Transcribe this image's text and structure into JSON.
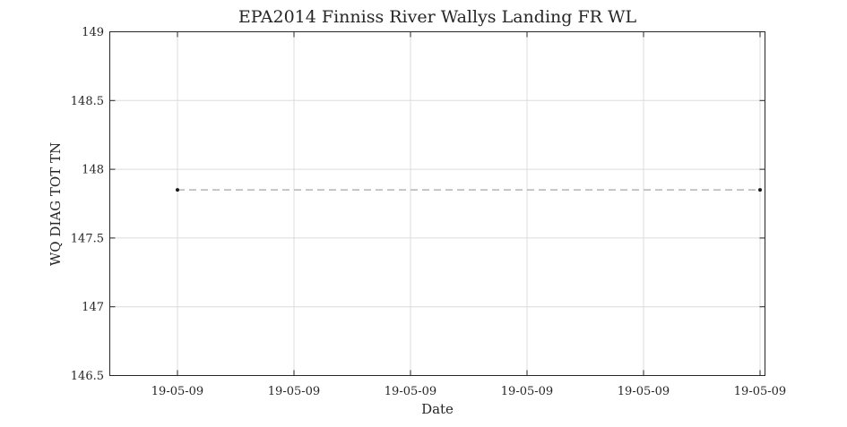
{
  "chart_data": {
    "type": "line",
    "title": "EPA2014 Finniss River Wallys Landing FR WL",
    "xlabel": "Date",
    "ylabel": "WQ DIAG TOT TN",
    "x_tick_labels": [
      "19-05-09",
      "19-05-09",
      "19-05-09",
      "19-05-09",
      "19-05-09",
      "19-05-09"
    ],
    "y_ticks": [
      146.5,
      147,
      147.5,
      148,
      148.5,
      149
    ],
    "y_tick_labels": [
      "146.5",
      "147",
      "147.5",
      "148",
      "148.5",
      "149"
    ],
    "ylim": [
      146.5,
      149
    ],
    "grid": true,
    "series": [
      {
        "points": [
          {
            "x": "first tick",
            "y": 147.85
          },
          {
            "x": "last tick",
            "y": 147.85
          }
        ],
        "line_style": "dashed",
        "line_color": "#b4b4b4",
        "marker_color": "#1a1a1a"
      }
    ]
  }
}
